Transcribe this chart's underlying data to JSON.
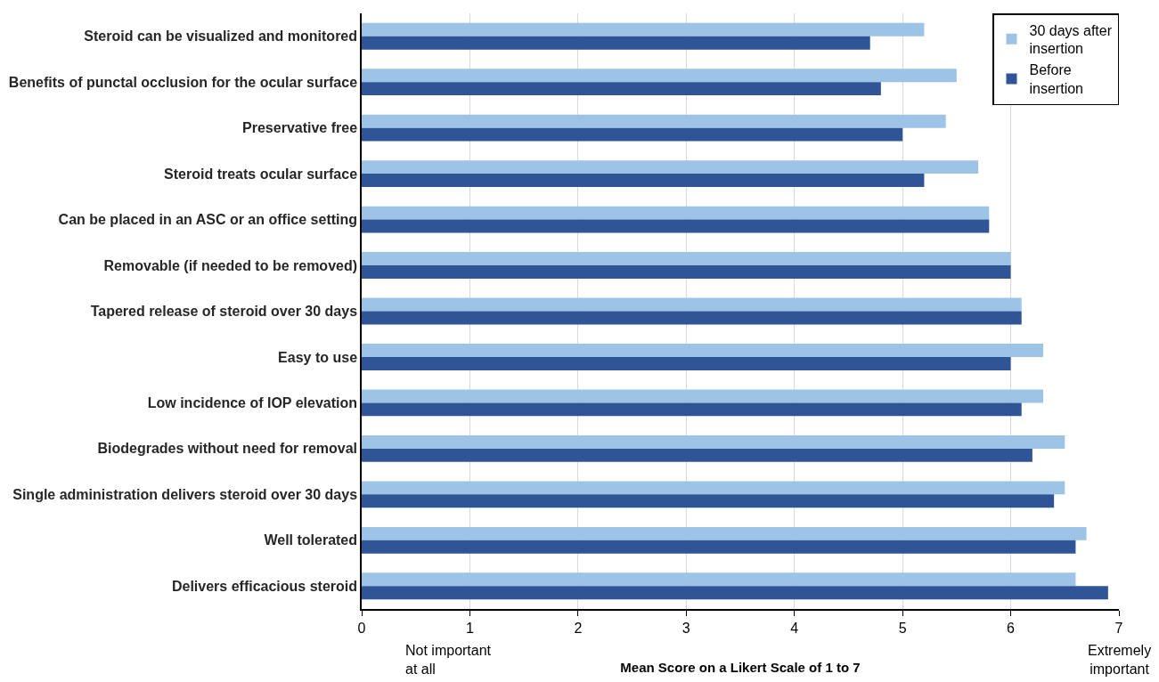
{
  "chart_data": {
    "type": "bar",
    "orientation": "horizontal",
    "xlabel": "Mean Score on a Likert Scale of 1 to 7",
    "categories": [
      "Steroid can be visualized and monitored",
      "Benefits of punctal occlusion for the ocular surface",
      "Preservative free",
      "Steroid treats ocular surface",
      "Can be placed in an ASC or an office setting",
      "Removable (if needed to be removed)",
      "Tapered release of steroid over 30 days",
      "Easy to use",
      "Low incidence of IOP elevation",
      "Biodegrades without need for removal",
      "Single administration delivers steroid over 30 days",
      "Well tolerated",
      "Delivers efficacious steroid"
    ],
    "series": [
      {
        "name": "30 days after insertion",
        "color": "#9dc3e6",
        "values": [
          5.2,
          5.5,
          5.4,
          5.7,
          5.8,
          6.0,
          6.1,
          6.3,
          6.3,
          6.5,
          6.5,
          6.7,
          6.6
        ]
      },
      {
        "name": "Before insertion",
        "color": "#2f5597",
        "values": [
          4.7,
          4.8,
          5.0,
          5.2,
          5.8,
          6.0,
          6.1,
          6.0,
          6.1,
          6.2,
          6.4,
          6.6,
          6.9
        ]
      }
    ],
    "xlim": [
      0,
      7
    ],
    "xticks": [
      0,
      1,
      2,
      3,
      4,
      5,
      6,
      7
    ],
    "grid": "x",
    "legend": "top right",
    "annotations": [
      "Not important at all",
      "Extremely important"
    ]
  }
}
